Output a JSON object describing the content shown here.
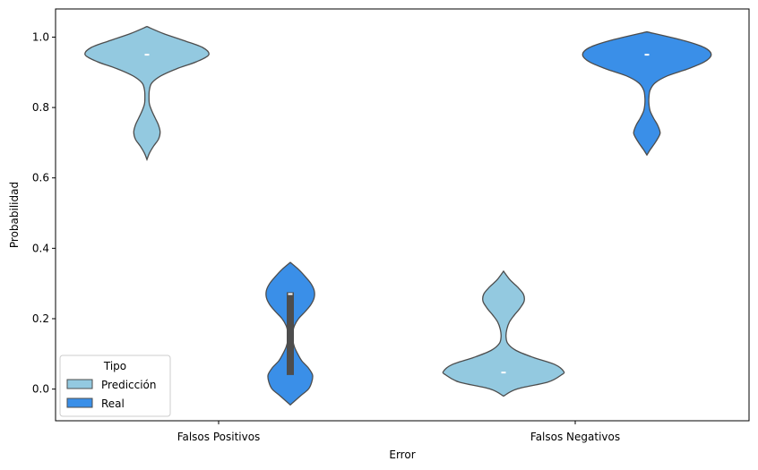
{
  "chart_data": {
    "type": "violin",
    "title": "",
    "xlabel": "Error",
    "ylabel": "Probabilidad",
    "categories": [
      "Falsos Positivos",
      "Falsos Negativos"
    ],
    "ylim": [
      -0.09,
      1.08
    ],
    "yticks": [
      0.0,
      0.2,
      0.4,
      0.6,
      0.8,
      1.0
    ],
    "ytick_labels": [
      "0.0",
      "0.2",
      "0.4",
      "0.6",
      "0.8",
      "1.0"
    ],
    "grid": false,
    "legend": {
      "title": "Tipo",
      "placement": "lower-left",
      "entries": [
        {
          "label": "Predicción",
          "color": "#93c9e0"
        },
        {
          "label": "Real",
          "color": "#3a8fe8"
        }
      ]
    },
    "series": [
      {
        "name": "Predicción",
        "color": "#93c9e0",
        "violins": [
          {
            "category": "Falsos Positivos",
            "min": 0.652,
            "max": 1.03,
            "median": 0.95,
            "density": [
              [
                0.652,
                0.0
              ],
              [
                0.67,
                0.03
              ],
              [
                0.69,
                0.08
              ],
              [
                0.71,
                0.14
              ],
              [
                0.73,
                0.16
              ],
              [
                0.75,
                0.14
              ],
              [
                0.77,
                0.1
              ],
              [
                0.79,
                0.06
              ],
              [
                0.81,
                0.03
              ],
              [
                0.83,
                0.025
              ],
              [
                0.85,
                0.03
              ],
              [
                0.87,
                0.06
              ],
              [
                0.89,
                0.17
              ],
              [
                0.91,
                0.36
              ],
              [
                0.93,
                0.6
              ],
              [
                0.95,
                0.75
              ],
              [
                0.97,
                0.68
              ],
              [
                0.99,
                0.45
              ],
              [
                1.01,
                0.2
              ],
              [
                1.03,
                0.0
              ]
            ]
          },
          {
            "category": "Falsos Negativos",
            "min": -0.02,
            "max": 0.335,
            "median": 0.047,
            "density": [
              [
                -0.02,
                0.0
              ],
              [
                0.0,
                0.16
              ],
              [
                0.02,
                0.54
              ],
              [
                0.04,
                0.7
              ],
              [
                0.05,
                0.73
              ],
              [
                0.07,
                0.62
              ],
              [
                0.09,
                0.36
              ],
              [
                0.11,
                0.15
              ],
              [
                0.13,
                0.05
              ],
              [
                0.15,
                0.03
              ],
              [
                0.17,
                0.04
              ],
              [
                0.19,
                0.07
              ],
              [
                0.21,
                0.13
              ],
              [
                0.23,
                0.2
              ],
              [
                0.25,
                0.25
              ],
              [
                0.27,
                0.24
              ],
              [
                0.29,
                0.17
              ],
              [
                0.31,
                0.08
              ],
              [
                0.335,
                0.0
              ]
            ]
          }
        ]
      },
      {
        "name": "Real",
        "color": "#3a8fe8",
        "violins": [
          {
            "category": "Falsos Positivos",
            "min": -0.045,
            "max": 0.36,
            "median": 0.27,
            "q1": 0.04,
            "q3": 0.275,
            "density": [
              [
                -0.045,
                0.0
              ],
              [
                -0.02,
                0.12
              ],
              [
                0.0,
                0.22
              ],
              [
                0.02,
                0.26
              ],
              [
                0.04,
                0.27
              ],
              [
                0.06,
                0.22
              ],
              [
                0.08,
                0.14
              ],
              [
                0.1,
                0.09
              ],
              [
                0.12,
                0.05
              ],
              [
                0.14,
                0.03
              ],
              [
                0.16,
                0.03
              ],
              [
                0.18,
                0.05
              ],
              [
                0.2,
                0.1
              ],
              [
                0.22,
                0.18
              ],
              [
                0.24,
                0.25
              ],
              [
                0.26,
                0.29
              ],
              [
                0.28,
                0.29
              ],
              [
                0.3,
                0.25
              ],
              [
                0.32,
                0.18
              ],
              [
                0.34,
                0.1
              ],
              [
                0.36,
                0.0
              ]
            ]
          },
          {
            "category": "Falsos Negativos",
            "min": 0.665,
            "max": 1.015,
            "median": 0.95,
            "density": [
              [
                0.665,
                0.0
              ],
              [
                0.68,
                0.04
              ],
              [
                0.7,
                0.1
              ],
              [
                0.72,
                0.15
              ],
              [
                0.73,
                0.16
              ],
              [
                0.75,
                0.13
              ],
              [
                0.77,
                0.08
              ],
              [
                0.79,
                0.04
              ],
              [
                0.81,
                0.025
              ],
              [
                0.83,
                0.025
              ],
              [
                0.85,
                0.04
              ],
              [
                0.87,
                0.1
              ],
              [
                0.89,
                0.25
              ],
              [
                0.91,
                0.5
              ],
              [
                0.93,
                0.7
              ],
              [
                0.95,
                0.78
              ],
              [
                0.97,
                0.7
              ],
              [
                0.99,
                0.45
              ],
              [
                1.015,
                0.0
              ]
            ]
          }
        ]
      }
    ]
  }
}
